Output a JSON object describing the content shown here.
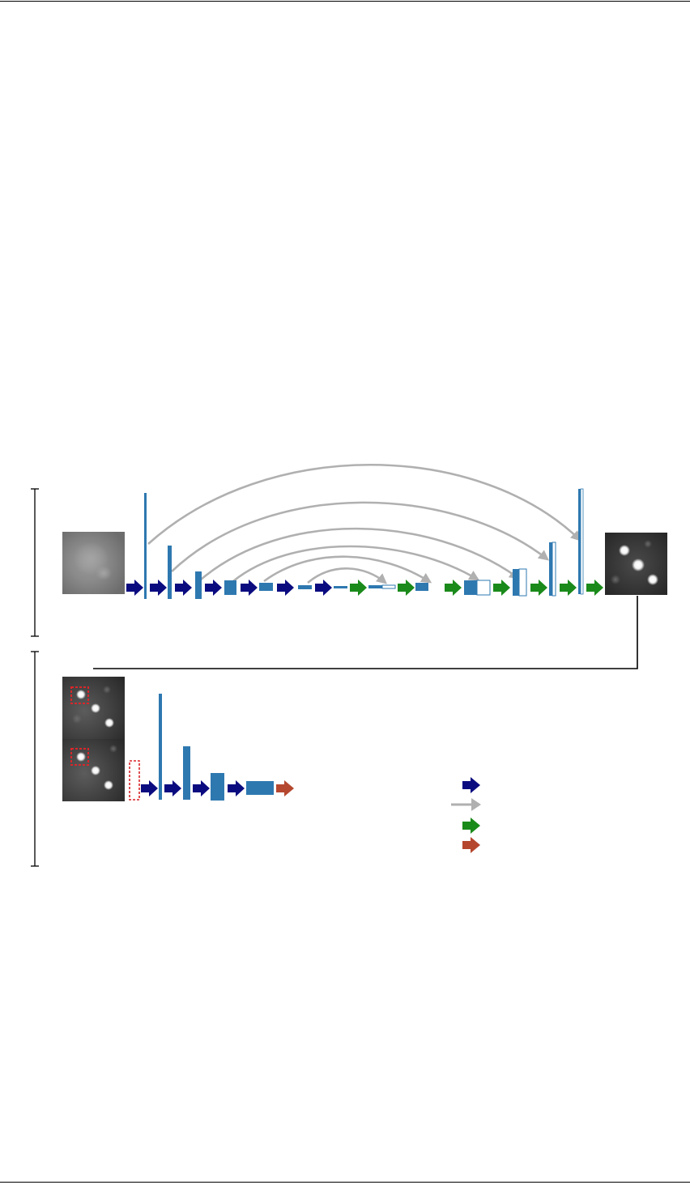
{
  "figure": {
    "colors": {
      "conv_arrow": "#0b0b80",
      "skip_arrow": "#b0b0b0",
      "upconv_arrow": "#1a8a1a",
      "output_arrow": "#b5472f",
      "feature_map": "#2e78b0",
      "feature_map_copy": "#ffffff",
      "crop_box": "#d9262a",
      "bracket": "#000000"
    },
    "images": {
      "unet_input": "blurred-microscopy-frame",
      "unet_output": "restored-spots-frame",
      "crop_source_top": "spots-frame-with-crop",
      "crop_source_bottom": "spots-frame-with-crop"
    },
    "legend": {
      "symbols": [
        "conv-arrow",
        "skip-arrow",
        "upconv-arrow",
        "output-arrow"
      ]
    }
  }
}
